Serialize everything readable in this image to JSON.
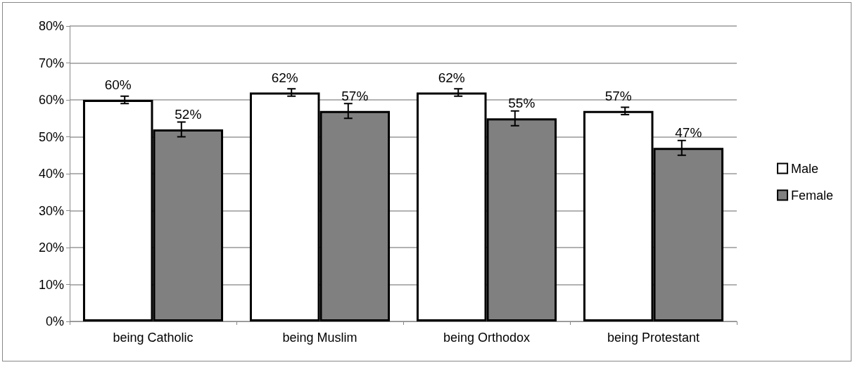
{
  "chart_data": {
    "type": "bar",
    "categories": [
      "being Catholic",
      "being Muslim",
      "being Orthodox",
      "being Protestant"
    ],
    "series": [
      {
        "name": "Male",
        "color": "#ffffff",
        "values": [
          60,
          62,
          62,
          57
        ],
        "errors": [
          1,
          1,
          1,
          1
        ],
        "value_labels": [
          "60%",
          "62%",
          "62%",
          "57%"
        ]
      },
      {
        "name": "Female",
        "color": "#808080",
        "values": [
          52,
          57,
          55,
          47
        ],
        "errors": [
          2,
          2,
          2,
          2
        ],
        "value_labels": [
          "52%",
          "57%",
          "55%",
          "47%"
        ]
      }
    ],
    "ylim": [
      0,
      80
    ],
    "yticks": [
      {
        "value": 0,
        "label": "0%"
      },
      {
        "value": 10,
        "label": "10%"
      },
      {
        "value": 20,
        "label": "20%"
      },
      {
        "value": 30,
        "label": "30%"
      },
      {
        "value": 40,
        "label": "40%"
      },
      {
        "value": 50,
        "label": "50%"
      },
      {
        "value": 60,
        "label": "60%"
      },
      {
        "value": 70,
        "label": "70%"
      },
      {
        "value": 80,
        "label": "80%"
      }
    ],
    "grid": "y",
    "legend": "right"
  }
}
